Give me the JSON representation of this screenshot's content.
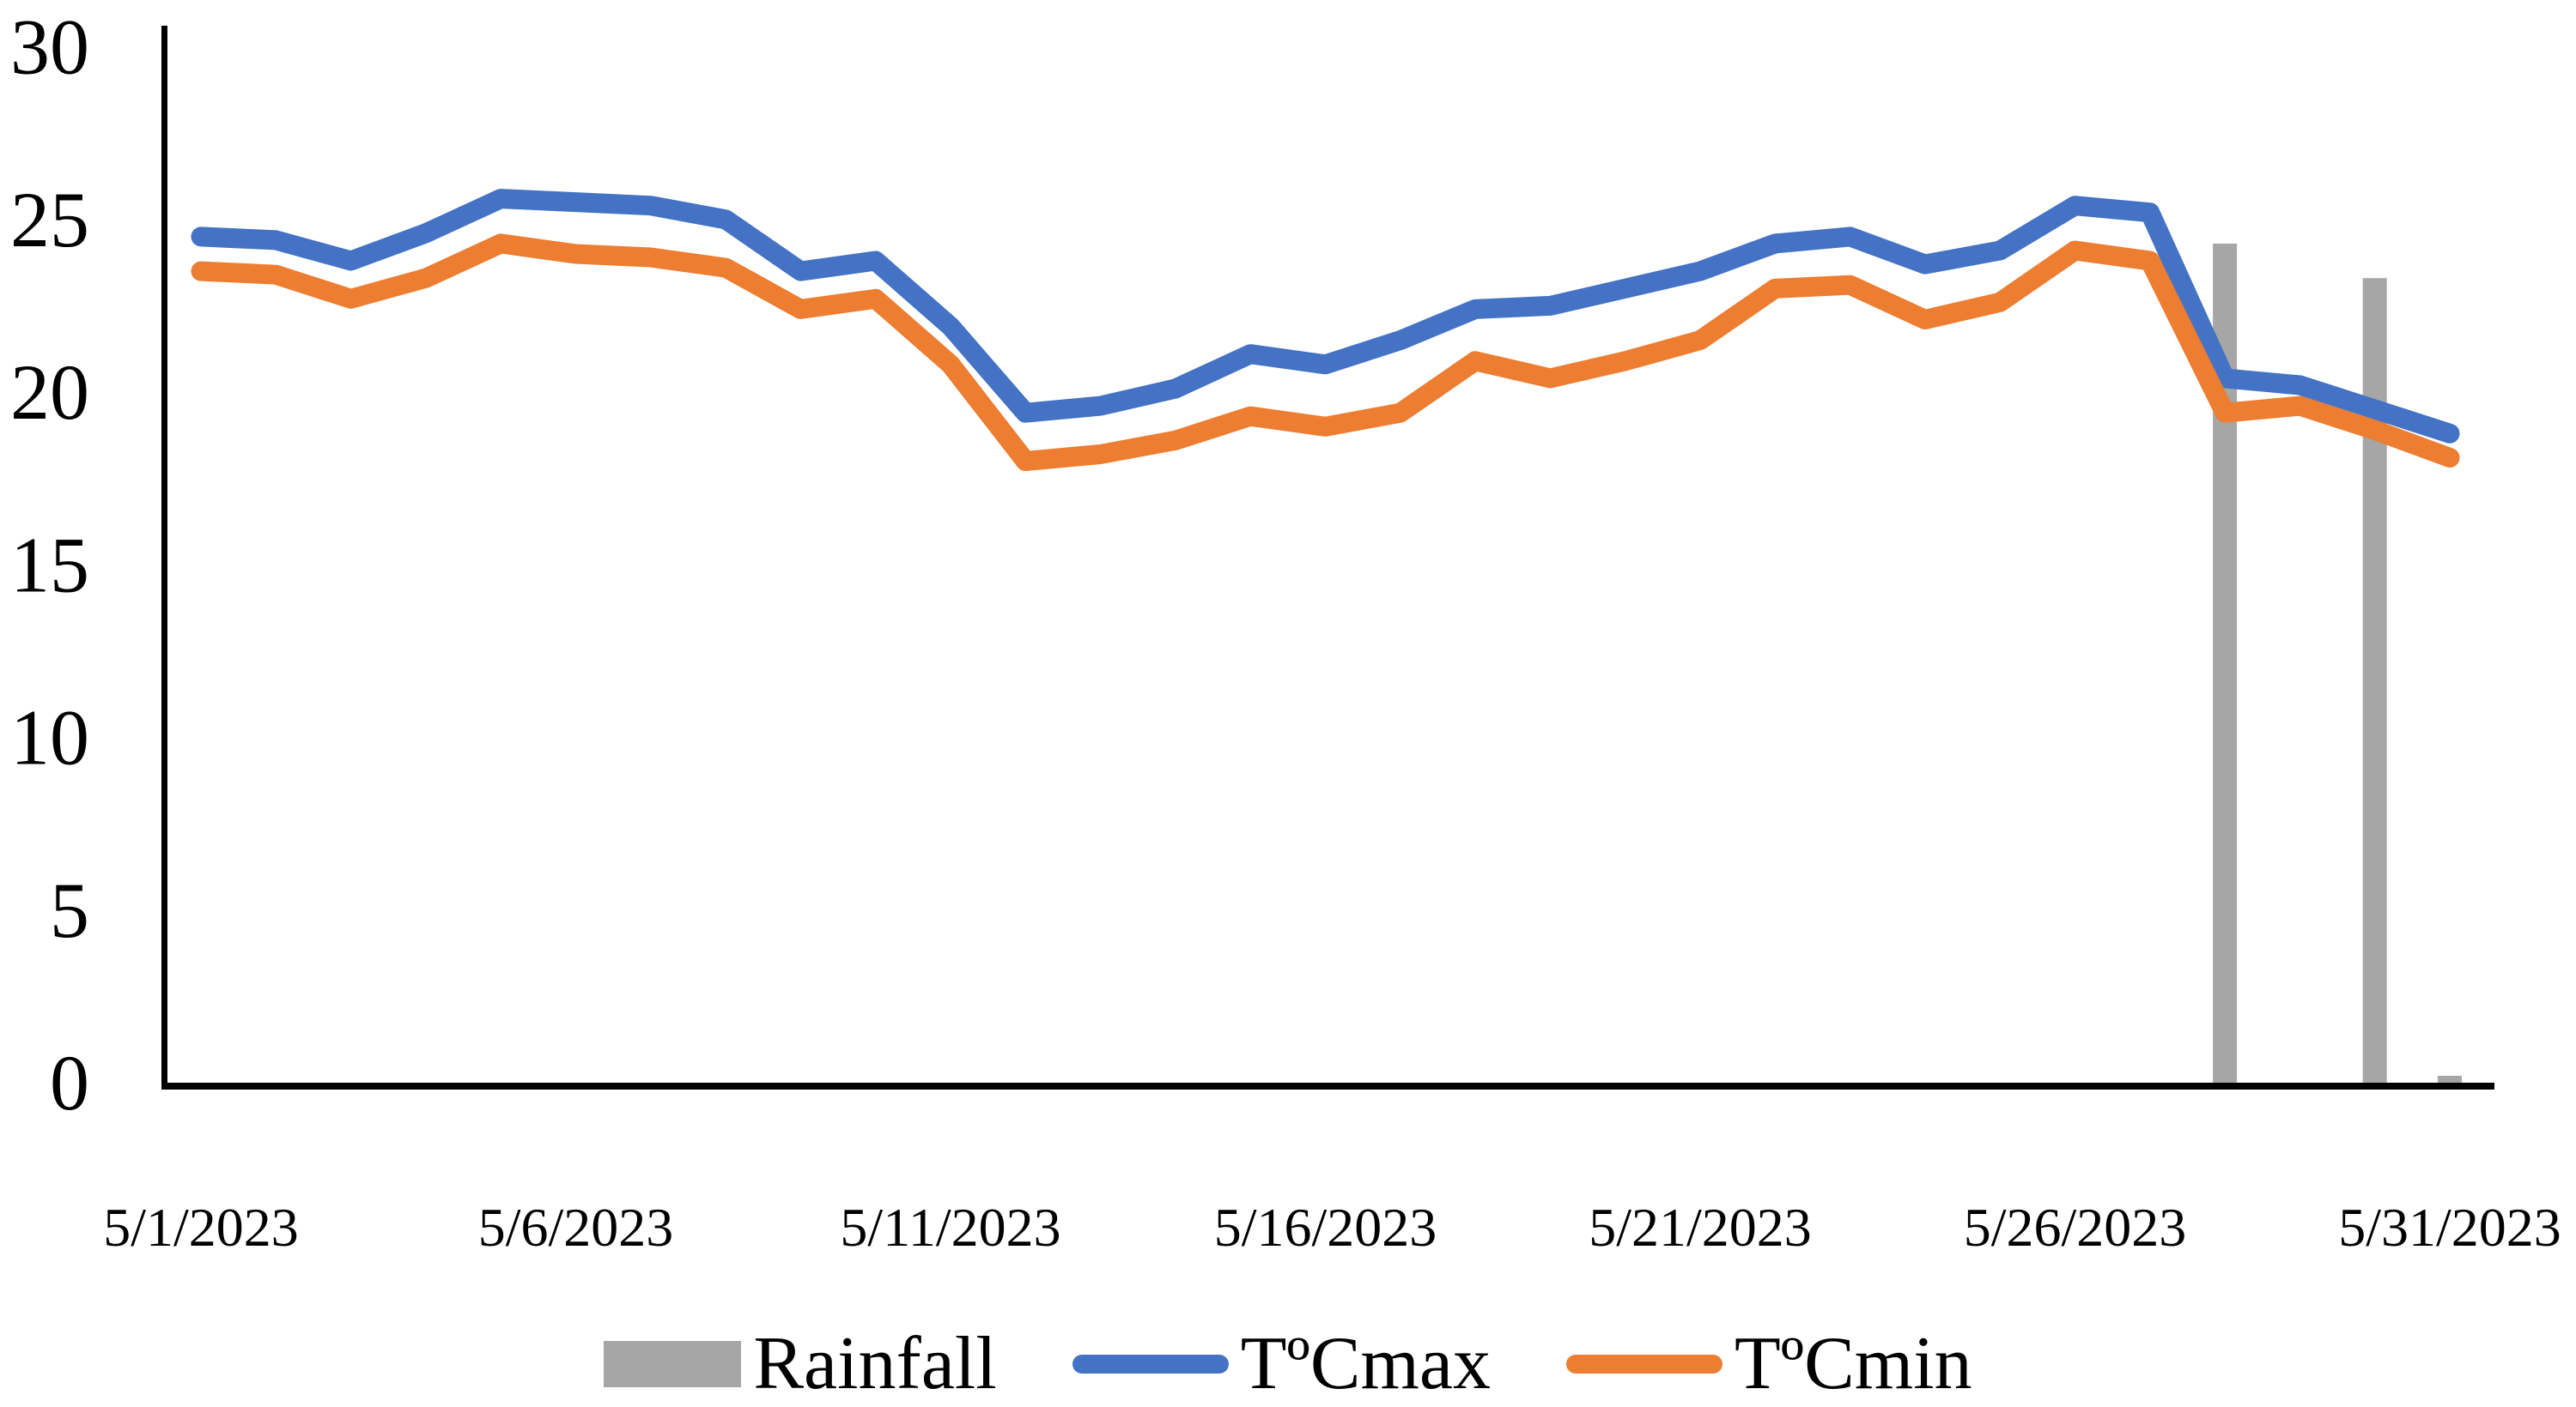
{
  "chart_data": {
    "type": "line+bar",
    "title": "",
    "xlabel": "",
    "ylabel": "",
    "ylim": [
      0,
      30
    ],
    "yticks": [
      0,
      5,
      10,
      15,
      20,
      25,
      30
    ],
    "grid": false,
    "legend_position": "bottom-center",
    "categories": [
      "5/1/2023",
      "5/2/2023",
      "5/3/2023",
      "5/4/2023",
      "5/5/2023",
      "5/6/2023",
      "5/7/2023",
      "5/8/2023",
      "5/9/2023",
      "5/10/2023",
      "5/11/2023",
      "5/12/2023",
      "5/13/2023",
      "5/14/2023",
      "5/15/2023",
      "5/16/2023",
      "5/17/2023",
      "5/18/2023",
      "5/19/2023",
      "5/20/2023",
      "5/21/2023",
      "5/22/2023",
      "5/23/2023",
      "5/24/2023",
      "5/25/2023",
      "5/26/2023",
      "5/27/2023",
      "5/28/2023",
      "5/29/2023",
      "5/30/2023",
      "5/31/2023"
    ],
    "x_tick_labels": [
      "5/1/2023",
      "5/6/2023",
      "5/11/2023",
      "5/16/2023",
      "5/21/2023",
      "5/26/2023",
      "5/31/2023"
    ],
    "x_tick_days": [
      1,
      6,
      11,
      16,
      21,
      26,
      31
    ],
    "axis_color": "#000000",
    "text_color": "#000000",
    "series": [
      {
        "name": "Rainfall",
        "type": "bar",
        "color": "#a6a6a6",
        "values": [
          0,
          0,
          0,
          0,
          0,
          0,
          0,
          0,
          0,
          0,
          0,
          0,
          0,
          0,
          0,
          0,
          0,
          0,
          0,
          0,
          0,
          0,
          0,
          0,
          0,
          0,
          0,
          24.3,
          0,
          23.3,
          0.2
        ]
      },
      {
        "name": "TºCmax",
        "type": "line",
        "color": "#4472c4",
        "values": [
          24.5,
          24.4,
          23.8,
          24.6,
          25.6,
          25.5,
          25.4,
          25.0,
          23.5,
          23.8,
          21.9,
          19.4,
          19.6,
          20.1,
          21.1,
          20.8,
          21.5,
          22.4,
          22.5,
          23.0,
          23.5,
          24.3,
          24.5,
          23.7,
          24.1,
          25.4,
          25.2,
          20.4,
          20.2,
          19.5,
          18.8
        ]
      },
      {
        "name": "TºCmin",
        "type": "line",
        "color": "#ed7d31",
        "values": [
          23.5,
          23.4,
          22.7,
          23.3,
          24.3,
          24.0,
          23.9,
          23.6,
          22.4,
          22.7,
          20.8,
          18.0,
          18.2,
          18.6,
          19.3,
          19.0,
          19.4,
          20.9,
          20.4,
          20.9,
          21.5,
          23.0,
          23.1,
          22.1,
          22.6,
          24.1,
          23.8,
          19.4,
          19.6,
          18.9,
          18.1
        ]
      }
    ]
  }
}
